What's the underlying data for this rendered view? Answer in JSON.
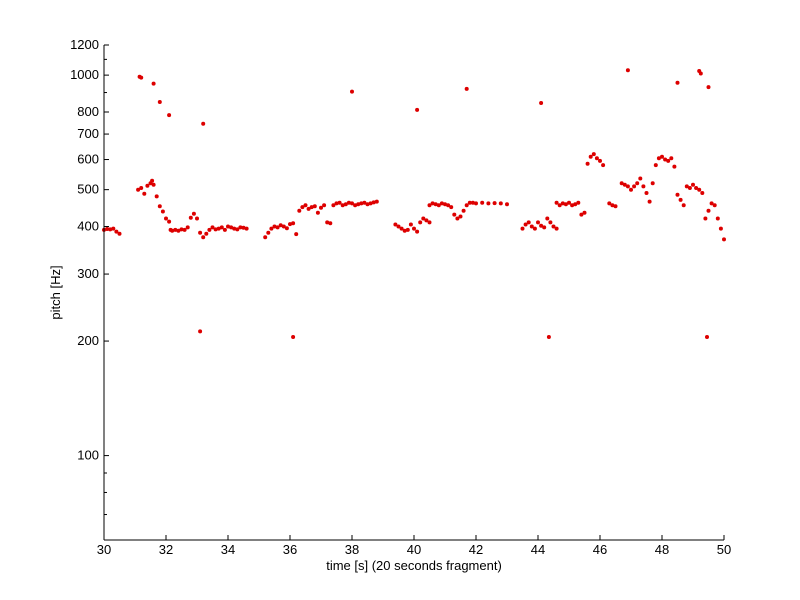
{
  "chart_data": {
    "type": "scatter",
    "xlabel": "time [s] (20 seconds fragment)",
    "ylabel": "pitch [Hz]",
    "xlim": [
      30,
      50
    ],
    "ylim": [
      60,
      1200
    ],
    "y_scale": "log",
    "x_ticks": [
      30,
      32,
      34,
      36,
      38,
      40,
      42,
      44,
      46,
      48,
      50
    ],
    "y_ticks": [
      100,
      200,
      300,
      400,
      500,
      600,
      700,
      800,
      1000,
      1200
    ],
    "grid": false,
    "marker_color": "#dd0000",
    "series": [
      {
        "points": [
          [
            30.0,
            392
          ],
          [
            30.1,
            394
          ],
          [
            30.2,
            393
          ],
          [
            30.3,
            395
          ],
          [
            30.4,
            388
          ],
          [
            30.5,
            383
          ],
          [
            31.1,
            500
          ],
          [
            31.2,
            505
          ],
          [
            31.3,
            488
          ],
          [
            31.4,
            512
          ],
          [
            31.5,
            520
          ],
          [
            31.55,
            528
          ],
          [
            31.6,
            515
          ],
          [
            31.7,
            480
          ],
          [
            31.8,
            452
          ],
          [
            31.9,
            438
          ],
          [
            32.0,
            420
          ],
          [
            32.1,
            412
          ],
          [
            32.15,
            392
          ],
          [
            32.2,
            390
          ],
          [
            32.3,
            392
          ],
          [
            32.4,
            390
          ],
          [
            32.5,
            393
          ],
          [
            32.6,
            392
          ],
          [
            32.7,
            398
          ],
          [
            32.8,
            422
          ],
          [
            32.9,
            432
          ],
          [
            33.0,
            420
          ],
          [
            33.1,
            385
          ],
          [
            33.2,
            375
          ],
          [
            33.3,
            383
          ],
          [
            33.4,
            392
          ],
          [
            33.5,
            398
          ],
          [
            33.6,
            393
          ],
          [
            33.7,
            395
          ],
          [
            33.8,
            398
          ],
          [
            33.9,
            392
          ],
          [
            34.0,
            400
          ],
          [
            34.1,
            398
          ],
          [
            34.2,
            395
          ],
          [
            34.3,
            393
          ],
          [
            34.4,
            398
          ],
          [
            34.5,
            397
          ],
          [
            34.6,
            395
          ],
          [
            35.2,
            375
          ],
          [
            35.3,
            385
          ],
          [
            35.4,
            395
          ],
          [
            35.5,
            400
          ],
          [
            35.6,
            398
          ],
          [
            35.7,
            403
          ],
          [
            35.8,
            400
          ],
          [
            35.9,
            396
          ],
          [
            36.0,
            406
          ],
          [
            36.1,
            408
          ],
          [
            36.2,
            382
          ],
          [
            36.3,
            440
          ],
          [
            36.4,
            450
          ],
          [
            36.5,
            455
          ],
          [
            36.6,
            445
          ],
          [
            36.7,
            450
          ],
          [
            36.8,
            452
          ],
          [
            36.9,
            435
          ],
          [
            37.0,
            448
          ],
          [
            37.1,
            455
          ],
          [
            37.2,
            410
          ],
          [
            37.3,
            408
          ],
          [
            37.4,
            455
          ],
          [
            37.5,
            460
          ],
          [
            37.6,
            462
          ],
          [
            37.7,
            455
          ],
          [
            37.8,
            458
          ],
          [
            37.9,
            462
          ],
          [
            38.0,
            460
          ],
          [
            38.1,
            455
          ],
          [
            38.2,
            458
          ],
          [
            38.3,
            460
          ],
          [
            38.4,
            462
          ],
          [
            38.5,
            458
          ],
          [
            38.6,
            460
          ],
          [
            38.7,
            463
          ],
          [
            38.8,
            465
          ],
          [
            39.4,
            405
          ],
          [
            39.5,
            400
          ],
          [
            39.6,
            395
          ],
          [
            39.7,
            390
          ],
          [
            39.8,
            392
          ],
          [
            39.9,
            405
          ],
          [
            40.0,
            395
          ],
          [
            40.1,
            388
          ],
          [
            40.2,
            410
          ],
          [
            40.3,
            420
          ],
          [
            40.4,
            415
          ],
          [
            40.5,
            410
          ],
          [
            40.5,
            455
          ],
          [
            40.6,
            460
          ],
          [
            40.7,
            458
          ],
          [
            40.8,
            455
          ],
          [
            40.9,
            460
          ],
          [
            41.0,
            458
          ],
          [
            41.1,
            455
          ],
          [
            41.2,
            450
          ],
          [
            41.3,
            430
          ],
          [
            41.4,
            420
          ],
          [
            41.5,
            425
          ],
          [
            41.6,
            440
          ],
          [
            41.7,
            455
          ],
          [
            41.8,
            462
          ],
          [
            41.9,
            462
          ],
          [
            42.0,
            460
          ],
          [
            42.2,
            462
          ],
          [
            42.4,
            460
          ],
          [
            42.6,
            461
          ],
          [
            42.8,
            460
          ],
          [
            43.0,
            458
          ],
          [
            43.5,
            395
          ],
          [
            43.6,
            405
          ],
          [
            43.7,
            410
          ],
          [
            43.8,
            400
          ],
          [
            43.9,
            395
          ],
          [
            44.0,
            410
          ],
          [
            44.1,
            402
          ],
          [
            44.2,
            398
          ],
          [
            44.3,
            420
          ],
          [
            44.4,
            410
          ],
          [
            44.5,
            400
          ],
          [
            44.6,
            395
          ],
          [
            44.6,
            462
          ],
          [
            44.7,
            455
          ],
          [
            44.8,
            460
          ],
          [
            44.9,
            458
          ],
          [
            45.0,
            462
          ],
          [
            45.1,
            455
          ],
          [
            45.2,
            458
          ],
          [
            45.3,
            462
          ],
          [
            45.4,
            430
          ],
          [
            45.5,
            435
          ],
          [
            45.6,
            585
          ],
          [
            45.7,
            610
          ],
          [
            45.8,
            620
          ],
          [
            45.9,
            605
          ],
          [
            46.0,
            595
          ],
          [
            46.1,
            580
          ],
          [
            46.3,
            460
          ],
          [
            46.4,
            455
          ],
          [
            46.5,
            452
          ],
          [
            46.7,
            520
          ],
          [
            46.8,
            515
          ],
          [
            46.9,
            510
          ],
          [
            47.0,
            500
          ],
          [
            47.1,
            510
          ],
          [
            47.2,
            520
          ],
          [
            47.3,
            535
          ],
          [
            47.4,
            510
          ],
          [
            47.5,
            490
          ],
          [
            47.6,
            465
          ],
          [
            47.7,
            520
          ],
          [
            47.8,
            580
          ],
          [
            47.9,
            605
          ],
          [
            48.0,
            610
          ],
          [
            48.1,
            600
          ],
          [
            48.2,
            595
          ],
          [
            48.3,
            605
          ],
          [
            48.4,
            575
          ],
          [
            48.5,
            485
          ],
          [
            48.6,
            470
          ],
          [
            48.7,
            455
          ],
          [
            48.8,
            510
          ],
          [
            48.9,
            505
          ],
          [
            49.0,
            515
          ],
          [
            49.1,
            505
          ],
          [
            49.2,
            500
          ],
          [
            49.3,
            490
          ],
          [
            49.4,
            420
          ],
          [
            49.5,
            440
          ],
          [
            49.6,
            460
          ],
          [
            49.7,
            455
          ],
          [
            49.8,
            420
          ],
          [
            49.9,
            395
          ],
          [
            50.0,
            370
          ]
        ]
      },
      {
        "points": [
          [
            31.15,
            990
          ],
          [
            31.2,
            985
          ],
          [
            31.6,
            950
          ],
          [
            31.8,
            850
          ],
          [
            32.1,
            785
          ],
          [
            33.2,
            745
          ],
          [
            33.1,
            212
          ],
          [
            36.1,
            205
          ],
          [
            38.0,
            905
          ],
          [
            40.1,
            810
          ],
          [
            41.7,
            920
          ],
          [
            44.1,
            845
          ],
          [
            44.35,
            205
          ],
          [
            46.9,
            1030
          ],
          [
            48.5,
            955
          ],
          [
            49.2,
            1025
          ],
          [
            49.25,
            1010
          ],
          [
            49.5,
            930
          ],
          [
            49.45,
            205
          ]
        ]
      }
    ]
  }
}
